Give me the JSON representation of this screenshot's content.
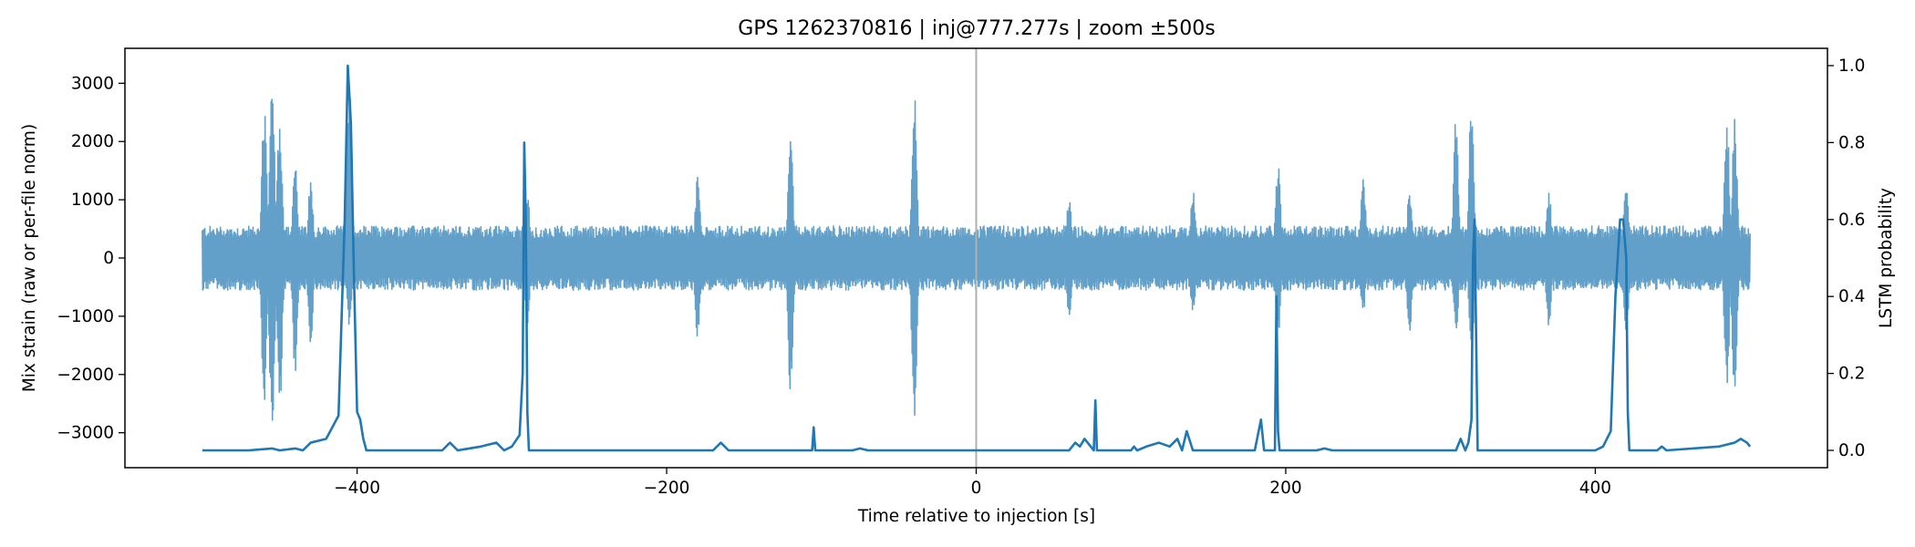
{
  "chart_data": {
    "type": "line",
    "title": "GPS 1262370816 | inj@777.277s | zoom ±500s",
    "xlabel": "Time relative to injection [s]",
    "ylabel": "Mix strain (raw or per-file norm)",
    "y2label": "LSTM probability",
    "xlim": [
      -550,
      550
    ],
    "ylim": [
      -3600,
      3600
    ],
    "y2lim": [
      -0.045,
      1.045
    ],
    "xticks": [
      -400,
      -200,
      0,
      200,
      400
    ],
    "xtick_labels": [
      "−400",
      "−200",
      "0",
      "200",
      "400"
    ],
    "yticks": [
      -3000,
      -2000,
      -1000,
      0,
      1000,
      2000,
      3000
    ],
    "ytick_labels": [
      "−3000",
      "−2000",
      "−1000",
      "0",
      "1000",
      "2000",
      "3000"
    ],
    "y2ticks": [
      0.0,
      0.2,
      0.4,
      0.6,
      0.8,
      1.0
    ],
    "y2tick_labels": [
      "0.0",
      "0.2",
      "0.4",
      "0.6",
      "0.8",
      "1.0"
    ],
    "grid": false,
    "injection_marker_x": 0,
    "colors": {
      "strain": "#1f77b4",
      "probability": "#1f77b4",
      "marker": "#b0b0b0"
    },
    "series": [
      {
        "axis": "left",
        "range_x": [
          -500,
          500
        ],
        "baseline_band": 550,
        "bursts": [
          {
            "t": -460,
            "lo": -2600,
            "hi": 2600
          },
          {
            "t": -455,
            "lo": -3100,
            "hi": 3250
          },
          {
            "t": -450,
            "lo": -2700,
            "hi": 2500
          },
          {
            "t": -440,
            "lo": -2000,
            "hi": 1700
          },
          {
            "t": -430,
            "lo": -1500,
            "hi": 1400
          },
          {
            "t": -405,
            "lo": -1200,
            "hi": 3250
          },
          {
            "t": -290,
            "lo": -1200,
            "hi": 1200
          },
          {
            "t": -180,
            "lo": -1400,
            "hi": 1400
          },
          {
            "t": -120,
            "lo": -2350,
            "hi": 2300
          },
          {
            "t": -40,
            "lo": -2900,
            "hi": 2950
          },
          {
            "t": 60,
            "lo": -1100,
            "hi": 1100
          },
          {
            "t": 140,
            "lo": -1000,
            "hi": 1200
          },
          {
            "t": 195,
            "lo": -1400,
            "hi": 1700
          },
          {
            "t": 250,
            "lo": -1000,
            "hi": 1500
          },
          {
            "t": 280,
            "lo": -1300,
            "hi": 1200
          },
          {
            "t": 310,
            "lo": -1400,
            "hi": 2500
          },
          {
            "t": 320,
            "lo": -1700,
            "hi": 2800
          },
          {
            "t": 370,
            "lo": -1300,
            "hi": 1200
          },
          {
            "t": 420,
            "lo": -1300,
            "hi": 1400
          },
          {
            "t": 485,
            "lo": -2300,
            "hi": 2450
          },
          {
            "t": 490,
            "lo": -2400,
            "hi": 2400
          }
        ]
      },
      {
        "axis": "right",
        "x": [
          -500,
          -470,
          -455,
          -450,
          -440,
          -435,
          -430,
          -420,
          -412,
          -408,
          -406,
          -404,
          -402,
          -400,
          -398,
          -396,
          -394,
          -390,
          -380,
          -360,
          -345,
          -340,
          -335,
          -320,
          -310,
          -305,
          -300,
          -295,
          -293,
          -292,
          -291,
          -290,
          -289,
          -288,
          -286,
          -280,
          -240,
          -230,
          -180,
          -170,
          -165,
          -160,
          -155,
          -150,
          -110,
          -106,
          -105,
          -104,
          -100,
          -80,
          -75,
          -70,
          0,
          60,
          64,
          67,
          70,
          72,
          74,
          76,
          77,
          78,
          80,
          90,
          100,
          102,
          104,
          110,
          118,
          125,
          130,
          133,
          136,
          140,
          180,
          184,
          186,
          190,
          193,
          194,
          195,
          196,
          197,
          198,
          220,
          225,
          230,
          300,
          310,
          313,
          316,
          318,
          320,
          321,
          322,
          323,
          324,
          330,
          390,
          397,
          400,
          405,
          410,
          413,
          416,
          418,
          420,
          421,
          422,
          440,
          443,
          446,
          480,
          490,
          494,
          498,
          500
        ],
        "y": [
          0.0,
          0.0,
          0.005,
          0.0,
          0.005,
          0.0,
          0.02,
          0.03,
          0.09,
          0.6,
          1.0,
          0.85,
          0.45,
          0.1,
          0.08,
          0.03,
          0.0,
          0.0,
          0.0,
          0.0,
          0.0,
          0.02,
          0.0,
          0.01,
          0.02,
          0.0,
          0.01,
          0.04,
          0.2,
          0.8,
          0.6,
          0.1,
          0.0,
          0.0,
          0.0,
          0.0,
          0.0,
          0.0,
          0.0,
          0.0,
          0.02,
          0.0,
          0.0,
          0.0,
          0.0,
          0.0,
          0.06,
          0.0,
          0.0,
          0.0,
          0.005,
          0.0,
          0.0,
          0.0,
          0.02,
          0.01,
          0.03,
          0.02,
          0.01,
          0.0,
          0.13,
          0.0,
          0.0,
          0.0,
          0.0,
          0.01,
          0.0,
          0.01,
          0.02,
          0.01,
          0.03,
          0.0,
          0.05,
          0.0,
          0.0,
          0.08,
          0.0,
          0.0,
          0.0,
          0.4,
          0.05,
          0.0,
          0.0,
          0.0,
          0.0,
          0.005,
          0.0,
          0.0,
          0.0,
          0.03,
          0.0,
          0.02,
          0.08,
          0.5,
          0.6,
          0.3,
          0.0,
          0.0,
          0.0,
          0.0,
          0.0,
          0.01,
          0.05,
          0.4,
          0.6,
          0.6,
          0.5,
          0.1,
          0.0,
          0.0,
          0.01,
          0.0,
          0.01,
          0.02,
          0.03,
          0.02,
          0.01
        ]
      }
    ]
  }
}
